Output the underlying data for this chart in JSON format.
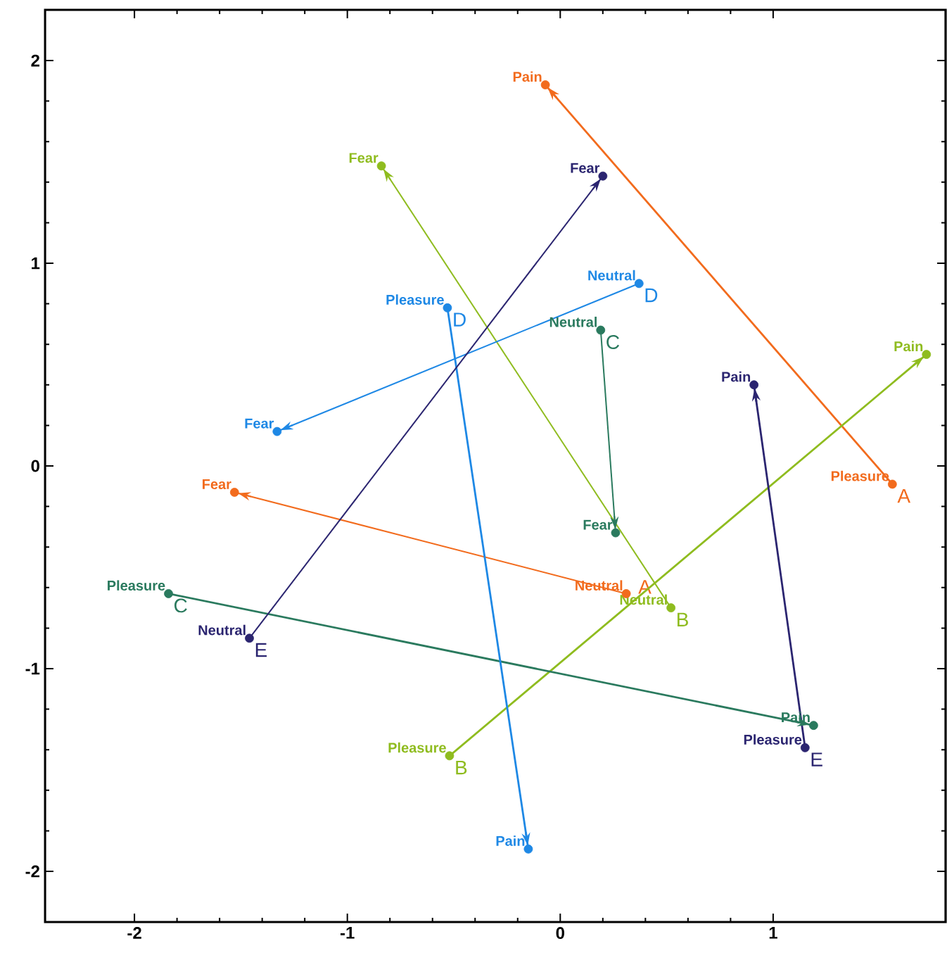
{
  "chart_data": {
    "type": "line",
    "marker": "circle",
    "grid": false,
    "xlim": [
      -2.42,
      1.81
    ],
    "ylim": [
      -2.25,
      2.25
    ],
    "xticks": [
      -2,
      -1,
      0,
      1
    ],
    "yticks": [
      -2,
      -1,
      0,
      1,
      2
    ],
    "series": [
      {
        "name": "A",
        "color": "#f26b1d",
        "x": [
          1.56,
          -0.07
        ],
        "values": [
          -0.09,
          1.88
        ]
      },
      {
        "name": "A",
        "color": "#f26b1d",
        "x": [
          0.31,
          -1.53
        ],
        "values": [
          -0.63,
          -0.13
        ]
      },
      {
        "name": "B",
        "color": "#8fbc1f",
        "x": [
          -0.52,
          1.72
        ],
        "values": [
          -1.43,
          0.55
        ]
      },
      {
        "name": "B",
        "color": "#8fbc1f",
        "x": [
          0.52,
          -0.84
        ],
        "values": [
          -0.7,
          1.48
        ]
      },
      {
        "name": "C",
        "color": "#2a7a5e",
        "x": [
          -1.84,
          1.19
        ],
        "values": [
          -0.63,
          -1.28
        ]
      },
      {
        "name": "C",
        "color": "#2a7a5e",
        "x": [
          0.19,
          0.26
        ],
        "values": [
          0.67,
          -0.33
        ]
      },
      {
        "name": "D",
        "color": "#1e88e5",
        "x": [
          -0.53,
          -0.15
        ],
        "values": [
          0.78,
          -1.89
        ]
      },
      {
        "name": "D",
        "color": "#1e88e5",
        "x": [
          0.37,
          -1.33
        ],
        "values": [
          0.9,
          0.17
        ]
      },
      {
        "name": "E",
        "color": "#2b2570",
        "x": [
          1.15,
          0.91
        ],
        "values": [
          -1.39,
          0.4
        ]
      },
      {
        "name": "E",
        "color": "#2b2570",
        "x": [
          -1.46,
          0.2
        ],
        "values": [
          -0.85,
          1.43
        ]
      }
    ],
    "annotations": [
      {
        "text": "Pleasure",
        "x": 1.56,
        "y": -0.09
      },
      {
        "text": "Pain",
        "x": -0.07,
        "y": 1.88
      },
      {
        "text": "Neutral",
        "x": 0.31,
        "y": -0.63
      },
      {
        "text": "Fear",
        "x": -1.53,
        "y": -0.13
      },
      {
        "text": "Pleasure",
        "x": -0.52,
        "y": -1.43
      },
      {
        "text": "Pain",
        "x": 1.72,
        "y": 0.55
      },
      {
        "text": "Neutral",
        "x": 0.52,
        "y": -0.7
      },
      {
        "text": "Fear",
        "x": -0.84,
        "y": 1.48
      },
      {
        "text": "Pleasure",
        "x": -1.84,
        "y": -0.63
      },
      {
        "text": "Pain",
        "x": 1.19,
        "y": -1.28
      },
      {
        "text": "Neutral",
        "x": 0.19,
        "y": 0.67
      },
      {
        "text": "Fear",
        "x": 0.26,
        "y": -0.33
      },
      {
        "text": "Pleasure",
        "x": -0.53,
        "y": 0.78
      },
      {
        "text": "Pain",
        "x": -0.15,
        "y": -1.89
      },
      {
        "text": "Neutral",
        "x": 0.37,
        "y": 0.9
      },
      {
        "text": "Fear",
        "x": -1.33,
        "y": 0.17
      },
      {
        "text": "Pleasure",
        "x": 1.15,
        "y": -1.39
      },
      {
        "text": "Pain",
        "x": 0.91,
        "y": 0.4
      },
      {
        "text": "Neutral",
        "x": -1.46,
        "y": -0.85
      },
      {
        "text": "Fear",
        "x": 0.2,
        "y": 1.43
      }
    ]
  }
}
